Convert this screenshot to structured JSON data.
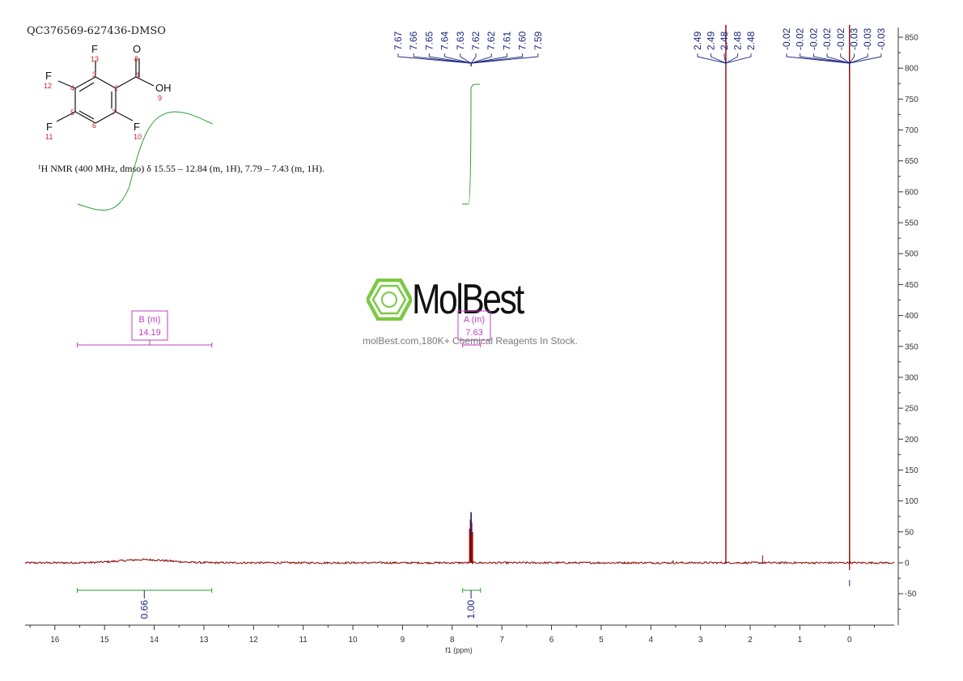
{
  "sample_id": "QC376569-627436-DMSO",
  "nmr_description": "¹H NMR (400 MHz, dmso) δ 15.55 – 12.84 (m, 1H), 7.79 – 7.43 (m, 1H).",
  "watermark": {
    "brand": "MolBest",
    "tagline": "molBest.com,180K+ Chemical Reagents In Stock."
  },
  "molecule": {
    "atom_labels": [
      "F",
      "O",
      "F",
      "OH",
      "F",
      "F"
    ],
    "atom_numbers": [
      "13",
      "8",
      "12",
      "1",
      "3",
      "2",
      "4",
      "9",
      "5",
      "7",
      "6",
      "11",
      "10"
    ]
  },
  "colors": {
    "spectrum": "#8b0000",
    "peak_labels": "#1a237e",
    "integral": "#2e9e2e",
    "multiplet": "#c040c0",
    "axis": "#333333",
    "logo": "#7ac943"
  },
  "chart_data": {
    "type": "line",
    "title": "",
    "xlabel": "f1 (ppm)",
    "ylabel": "",
    "x_reversed": true,
    "xlim": [
      16.6,
      -0.9
    ],
    "ylim": [
      -100,
      870
    ],
    "x_ticks": [
      "16",
      "15",
      "14",
      "13",
      "12",
      "11",
      "10",
      "9",
      "8",
      "7",
      "6",
      "5",
      "4",
      "3",
      "2",
      "1",
      "0"
    ],
    "y_ticks": [
      "850",
      "800",
      "750",
      "700",
      "650",
      "600",
      "550",
      "500",
      "450",
      "400",
      "350",
      "300",
      "250",
      "200",
      "150",
      "100",
      "50",
      "0",
      "-50"
    ],
    "peaks": [
      {
        "ppm": 14.2,
        "height": 5
      },
      {
        "ppm": 7.62,
        "height": 80
      },
      {
        "ppm": 2.49,
        "height": 870
      },
      {
        "ppm": 0.0,
        "height": 870
      }
    ],
    "peak_label_groups": [
      {
        "labels": [
          "7.67",
          "7.66",
          "7.65",
          "7.64",
          "7.63",
          "7.62",
          "7.62",
          "7.61",
          "7.60",
          "7.59"
        ]
      },
      {
        "labels": [
          "2.49",
          "2.49",
          "2.48",
          "2.48",
          "2.48"
        ]
      },
      {
        "labels": [
          "-0.02",
          "-0.02",
          "-0.02",
          "-0.02",
          "-0.02",
          "-0.03",
          "-0.03",
          "-0.03"
        ]
      }
    ],
    "integrals": [
      {
        "from": 15.55,
        "to": 12.84,
        "value": "0.66"
      },
      {
        "from": 7.79,
        "to": 7.43,
        "value": "1.00"
      }
    ],
    "multiplets": [
      {
        "letter": "B (m)",
        "shift": "14.19",
        "from": 15.55,
        "to": 12.84
      },
      {
        "letter": "A (m)",
        "shift": "7.63",
        "from": 7.79,
        "to": 7.43
      }
    ]
  }
}
